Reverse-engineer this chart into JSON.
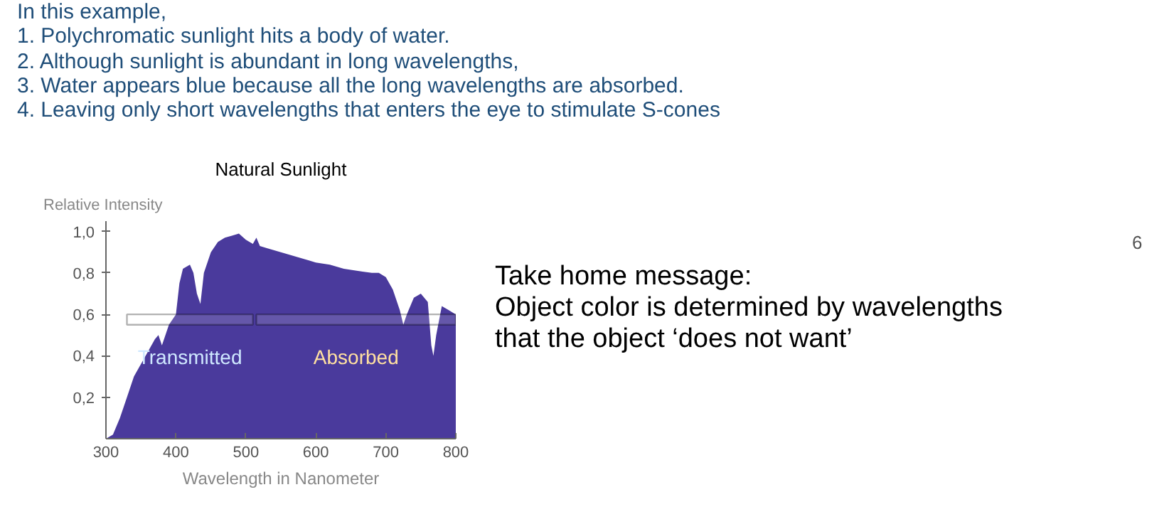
{
  "chart_data": {
    "type": "area",
    "title": "Natural Sunlight",
    "xlabel": "Wavelength in Nanometer",
    "ylabel": "Relative Intensity",
    "x": [
      300,
      310,
      320,
      330,
      340,
      350,
      360,
      370,
      375,
      380,
      390,
      400,
      405,
      410,
      420,
      425,
      430,
      435,
      440,
      450,
      460,
      470,
      480,
      490,
      500,
      510,
      515,
      520,
      530,
      550,
      570,
      590,
      600,
      620,
      640,
      660,
      680,
      690,
      700,
      710,
      720,
      725,
      730,
      740,
      750,
      760,
      765,
      768,
      772,
      780,
      790,
      800
    ],
    "series": [
      {
        "color": "#4a3a9c",
        "values": [
          0,
          0.02,
          0.1,
          0.2,
          0.3,
          0.36,
          0.42,
          0.48,
          0.5,
          0.45,
          0.55,
          0.6,
          0.75,
          0.82,
          0.84,
          0.8,
          0.7,
          0.65,
          0.8,
          0.9,
          0.95,
          0.97,
          0.98,
          0.99,
          0.96,
          0.94,
          0.97,
          0.93,
          0.92,
          0.9,
          0.88,
          0.86,
          0.85,
          0.84,
          0.82,
          0.81,
          0.8,
          0.8,
          0.78,
          0.72,
          0.62,
          0.55,
          0.6,
          0.68,
          0.7,
          0.66,
          0.45,
          0.4,
          0.5,
          0.64,
          0.62,
          0.6
        ]
      }
    ],
    "xlim": [
      300,
      800
    ],
    "xticks": [
      300,
      400,
      500,
      600,
      700,
      800
    ],
    "ylim": [
      0,
      1.05
    ],
    "yticks": [
      {
        "value": 0.2,
        "label": "0,2"
      },
      {
        "value": 0.4,
        "label": "0,4"
      },
      {
        "value": 0.6,
        "label": "0,6"
      },
      {
        "value": 0.8,
        "label": "0,8"
      },
      {
        "value": 1.0,
        "label": "1,0"
      }
    ],
    "grid": false,
    "bands": [
      {
        "axis": "x",
        "from": 330,
        "to": 510,
        "label": "Transmitted",
        "color": "#000000"
      },
      {
        "axis": "x",
        "from": 515,
        "to": 800,
        "label": "Absorbed",
        "color": "#000000"
      }
    ],
    "annotations": [
      "In this example,\n1.    Polychromatic sunlight hits a body of water.\n2.    Although sunlight is abundant in long wavelengths,\n3.    Water appears blue because all the long wavelengths are absorbed.\n4.    Leaving only short wavelengths that enters the eye to stimulate S-cones",
      "Take home message:\nObject color is determined by wavelengths\nthat the object ‘does not want’",
      "6"
    ]
  }
}
